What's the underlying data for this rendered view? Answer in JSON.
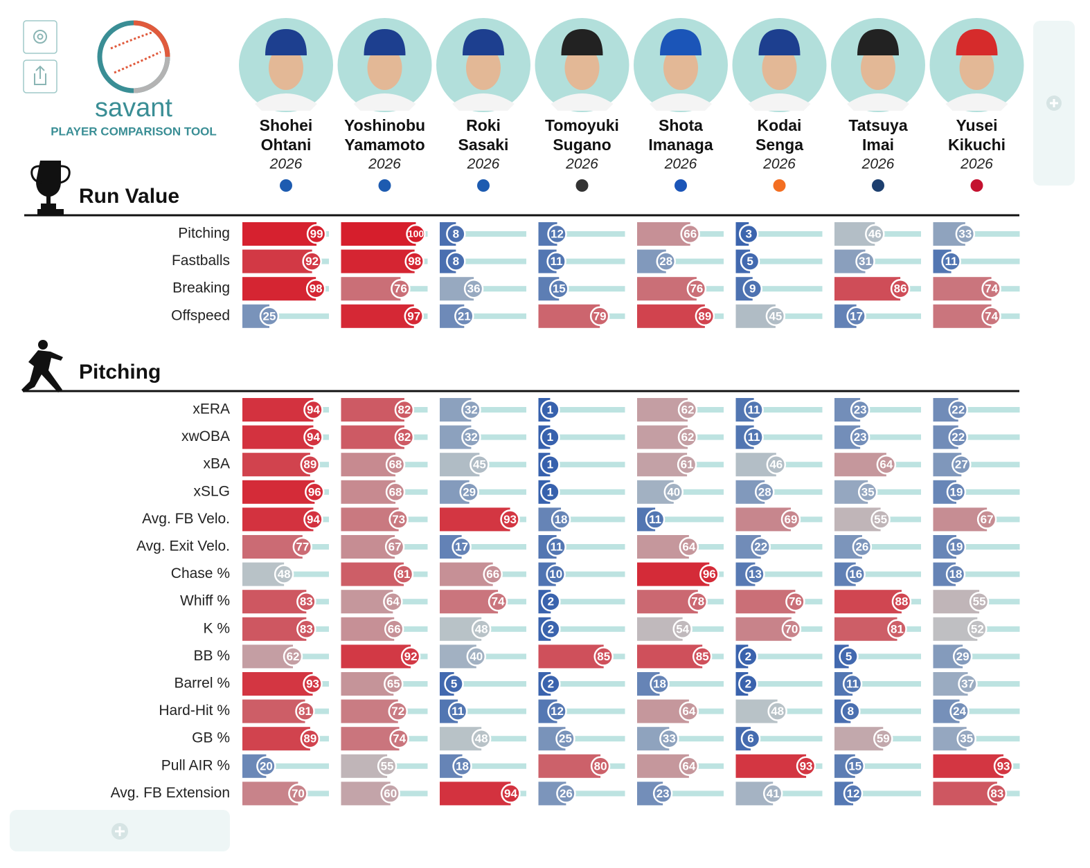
{
  "logo": {
    "name": "savant",
    "subtitle": "PLAYER COMPARISON TOOL"
  },
  "players": [
    {
      "first": "Shohei",
      "last": "Ohtani",
      "season": "2026"
    },
    {
      "first": "Yoshinobu",
      "last": "Yamamoto",
      "season": "2026"
    },
    {
      "first": "Roki",
      "last": "Sasaki",
      "season": "2026"
    },
    {
      "first": "Tomoyuki",
      "last": "Sugano",
      "season": "2026"
    },
    {
      "first": "Shota",
      "last": "Imanaga",
      "season": "2026"
    },
    {
      "first": "Kodai",
      "last": "Senga",
      "season": "2026"
    },
    {
      "first": "Tatsuya",
      "last": "Imai",
      "season": "2026"
    },
    {
      "first": "Yusei",
      "last": "Kikuchi",
      "season": "2026"
    }
  ],
  "xlim": [
    0,
    100
  ],
  "sections": [
    {
      "title": "Run Value",
      "rows": [
        {
          "label": "Pitching",
          "values": [
            99,
            100,
            8,
            12,
            66,
            3,
            46,
            33
          ]
        },
        {
          "label": "Fastballs",
          "values": [
            92,
            98,
            8,
            11,
            28,
            5,
            31,
            11
          ]
        },
        {
          "label": "Breaking",
          "values": [
            98,
            76,
            36,
            15,
            76,
            9,
            86,
            74
          ]
        },
        {
          "label": "Offspeed",
          "values": [
            25,
            97,
            21,
            79,
            89,
            45,
            17,
            74
          ]
        }
      ]
    },
    {
      "title": "Pitching",
      "rows": [
        {
          "label": "xERA",
          "values": [
            94,
            82,
            32,
            1,
            62,
            11,
            23,
            22
          ]
        },
        {
          "label": "xwOBA",
          "values": [
            94,
            82,
            32,
            1,
            62,
            11,
            23,
            22
          ]
        },
        {
          "label": "xBA",
          "values": [
            89,
            68,
            45,
            1,
            61,
            46,
            64,
            27
          ]
        },
        {
          "label": "xSLG",
          "values": [
            96,
            68,
            29,
            1,
            40,
            28,
            35,
            19
          ]
        },
        {
          "label": "Avg. FB Velo.",
          "values": [
            94,
            73,
            93,
            18,
            11,
            69,
            55,
            67
          ]
        },
        {
          "label": "Avg. Exit Velo.",
          "values": [
            77,
            67,
            17,
            11,
            64,
            22,
            26,
            19
          ]
        },
        {
          "label": "Chase %",
          "values": [
            48,
            81,
            66,
            10,
            96,
            13,
            16,
            18
          ]
        },
        {
          "label": "Whiff %",
          "values": [
            83,
            64,
            74,
            2,
            78,
            76,
            88,
            55
          ]
        },
        {
          "label": "K %",
          "values": [
            83,
            66,
            48,
            2,
            54,
            70,
            81,
            52
          ]
        },
        {
          "label": "BB %",
          "values": [
            62,
            92,
            40,
            85,
            85,
            2,
            5,
            29
          ]
        },
        {
          "label": "Barrel %",
          "values": [
            93,
            65,
            5,
            2,
            18,
            2,
            11,
            37
          ]
        },
        {
          "label": "Hard-Hit %",
          "values": [
            81,
            72,
            11,
            12,
            64,
            48,
            8,
            24
          ]
        },
        {
          "label": "GB %",
          "values": [
            89,
            74,
            48,
            25,
            33,
            6,
            59,
            35
          ]
        },
        {
          "label": "Pull AIR %",
          "values": [
            20,
            55,
            18,
            80,
            64,
            93,
            15,
            93
          ]
        },
        {
          "label": "Avg. FB Extension",
          "values": [
            70,
            60,
            94,
            26,
            23,
            41,
            12,
            83
          ]
        }
      ]
    }
  ]
}
